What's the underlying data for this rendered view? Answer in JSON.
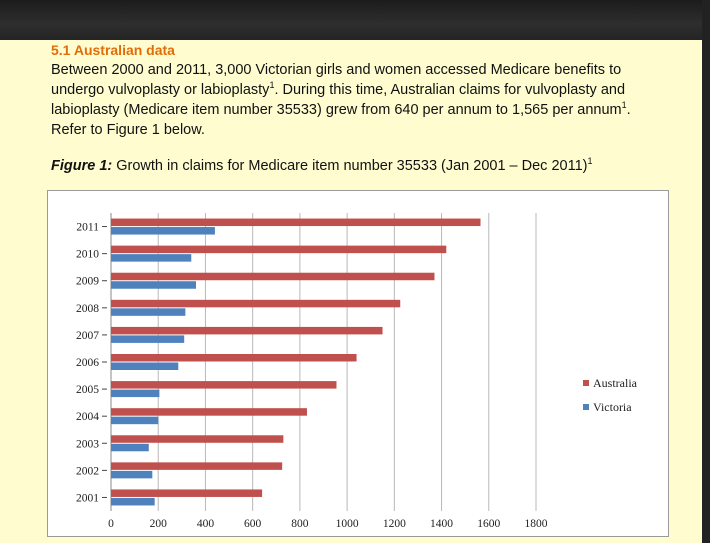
{
  "section": {
    "heading": "5.1 Australian data",
    "paragraph_lines": [
      "Between 2000 and 2011, 3,000 Victorian girls and women accessed Medicare benefits to",
      "undergo vulvoplasty or labioplasty",
      ". During this time, Australian claims for vulvoplasty and",
      "labioplasty (Medicare item number 35533) grew from 640 per annum to 1,565 per annum",
      ".",
      "Refer to Figure 1 below."
    ],
    "ref_mark": "1"
  },
  "figure": {
    "label": "Figure 1:",
    "caption": " Growth in claims for Medicare item number 35533 (Jan 2001 – Dec 2011)",
    "ref_mark": "1"
  },
  "colors": {
    "australia": "#c0504d",
    "victoria": "#4f81bd",
    "heading": "#e36c09",
    "page_bg": "#fffdd0"
  },
  "chart_data": {
    "type": "bar",
    "orientation": "horizontal",
    "categories": [
      "2011",
      "2010",
      "2009",
      "2008",
      "2007",
      "2006",
      "2005",
      "2004",
      "2003",
      "2002",
      "2001"
    ],
    "series": [
      {
        "name": "Australia",
        "values": [
          1565,
          1420,
          1370,
          1225,
          1150,
          1040,
          955,
          830,
          730,
          725,
          640
        ]
      },
      {
        "name": "Victoria",
        "values": [
          440,
          340,
          360,
          315,
          310,
          285,
          205,
          200,
          160,
          175,
          185
        ]
      }
    ],
    "xlim": [
      0,
      1800
    ],
    "xticks": [
      0,
      200,
      400,
      600,
      800,
      1000,
      1200,
      1400,
      1600,
      1800
    ],
    "grid": "vertical",
    "legend": "right",
    "title": "",
    "xlabel": "",
    "ylabel": ""
  }
}
